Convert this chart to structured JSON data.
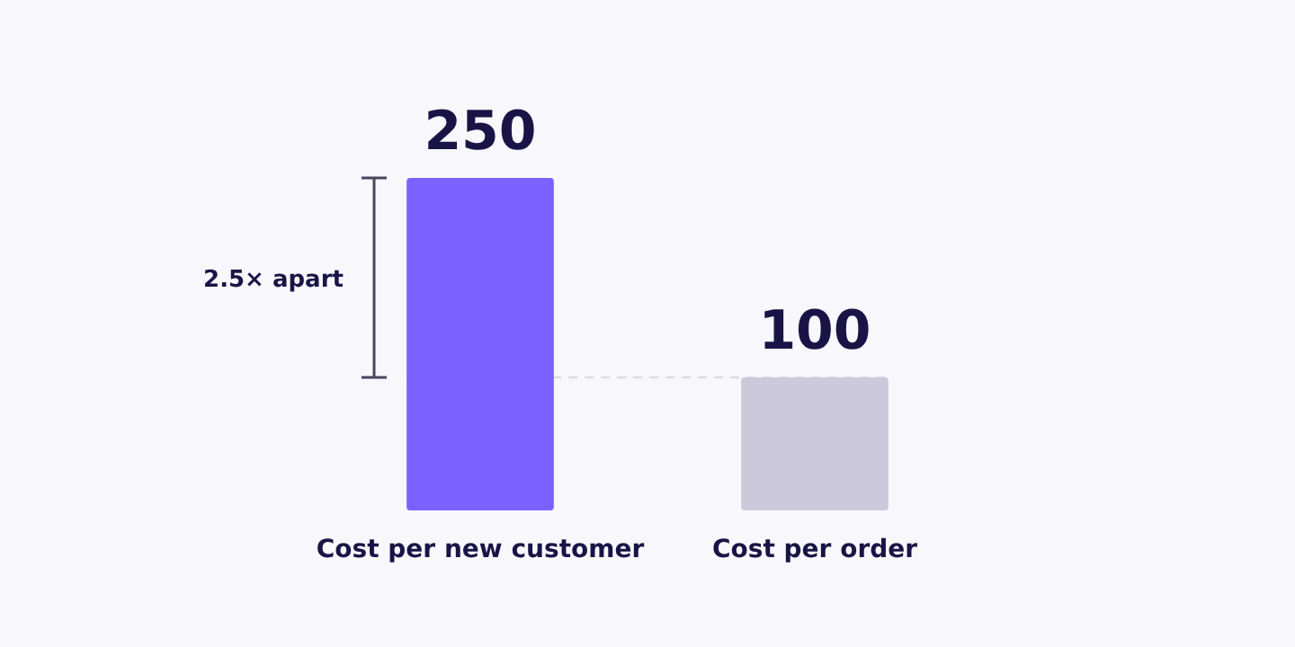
{
  "chart_data": {
    "type": "bar",
    "categories": [
      "Cost per new customer",
      "Cost per order"
    ],
    "values": [
      250,
      100
    ],
    "colors": [
      "#7b61ff",
      "#cdc9dc"
    ],
    "ylim": [
      0,
      250
    ],
    "data_labels": true,
    "ref_lines": [
      {
        "axis": "y",
        "value": 100,
        "color": "#dcdce6",
        "line_style": "dashed"
      }
    ],
    "annotations": [
      "2.5× apart"
    ]
  }
}
